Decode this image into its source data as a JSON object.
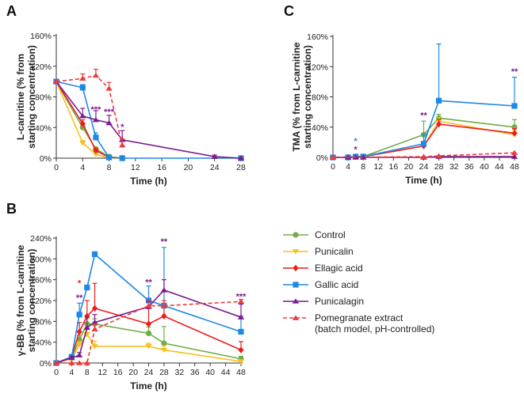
{
  "colors": {
    "Control": "#70ad47",
    "Punicalin": "#f5c020",
    "Ellagic acid": "#ee1c1c",
    "Gallic acid": "#1e88e5",
    "Punicalagin": "#7b1a8e",
    "Pomegranate extract": "#ee3a3a",
    "axis": "#333333"
  },
  "legend": {
    "items": [
      {
        "name": "Control",
        "label": "Control",
        "marker": "circle",
        "dashed": false
      },
      {
        "name": "Punicalin",
        "label": "Punicalin",
        "marker": "tri-down",
        "dashed": false
      },
      {
        "name": "Ellagic acid",
        "label": "Ellagic acid",
        "marker": "diamond",
        "dashed": false
      },
      {
        "name": "Gallic acid",
        "label": "Gallic acid",
        "marker": "square",
        "dashed": false
      },
      {
        "name": "Punicalagin",
        "label": "Punicalagin",
        "marker": "tri-up",
        "dashed": false
      },
      {
        "name": "Pomegranate extract",
        "label": "Pomegranate extract\n(batch model, pH-controlled)",
        "marker": "tri-up",
        "dashed": true
      }
    ]
  },
  "chart_data": [
    {
      "panel": "A",
      "type": "line",
      "xlabel": "Time (h)",
      "ylabel": [
        "L-carnitine (% from",
        "starting concentration)"
      ],
      "xlim": [
        0,
        28
      ],
      "xticks": [
        0,
        4,
        8,
        12,
        16,
        20,
        24,
        28
      ],
      "ylim": [
        0,
        160
      ],
      "yticks": [
        0,
        40,
        80,
        120,
        160
      ],
      "ytick_suffix": "%",
      "series": [
        {
          "name": "Control",
          "x": [
            0,
            4,
            6,
            8,
            10
          ],
          "y": [
            100,
            40,
            12,
            2,
            0
          ],
          "err": [
            0,
            4,
            2,
            1,
            0
          ]
        },
        {
          "name": "Punicalin",
          "x": [
            0,
            4,
            6,
            8,
            10
          ],
          "y": [
            100,
            20,
            5,
            0,
            0
          ],
          "err": [
            0,
            3,
            1,
            0,
            0
          ]
        },
        {
          "name": "Ellagic acid",
          "x": [
            0,
            4,
            6,
            8,
            10
          ],
          "y": [
            100,
            45,
            10,
            1,
            0
          ],
          "err": [
            0,
            5,
            2,
            0,
            0
          ]
        },
        {
          "name": "Gallic acid",
          "x": [
            0,
            4,
            6,
            8,
            10,
            28
          ],
          "y": [
            100,
            92,
            27,
            1,
            0,
            0
          ],
          "err": [
            0,
            4,
            6,
            0,
            0,
            0
          ]
        },
        {
          "name": "Punicalagin",
          "x": [
            0,
            4,
            6,
            8,
            10,
            24,
            28
          ],
          "y": [
            100,
            55,
            50,
            46,
            24,
            2,
            0
          ],
          "err": [
            0,
            10,
            12,
            10,
            12,
            2,
            0
          ]
        },
        {
          "name": "Pomegranate extract",
          "x": [
            0,
            4,
            6,
            8,
            10
          ],
          "y": [
            100,
            104,
            108,
            91,
            17
          ],
          "err": [
            0,
            6,
            8,
            8,
            8
          ]
        }
      ],
      "annotations": [
        {
          "text": "***",
          "x": 6,
          "y": 60,
          "color_of": "Punicalagin"
        },
        {
          "text": "***",
          "x": 8,
          "y": 57,
          "color_of": "Punicalagin"
        },
        {
          "text": "*",
          "x": 10,
          "y": 37,
          "color_of": "Punicalagin"
        }
      ]
    },
    {
      "panel": "B",
      "type": "line",
      "xlabel": "Time (h)",
      "ylabel": [
        "γ-BB (% from L-carnitine",
        "starting concentration)"
      ],
      "xlim": [
        0,
        48
      ],
      "xticks": [
        0,
        4,
        8,
        12,
        16,
        20,
        24,
        28,
        32,
        36,
        40,
        44,
        48
      ],
      "ylim": [
        0,
        240
      ],
      "yticks": [
        0,
        40,
        80,
        120,
        160,
        200,
        240
      ],
      "ytick_suffix": "%",
      "series": [
        {
          "name": "Control",
          "x": [
            0,
            4,
            6,
            8,
            10,
            24,
            28,
            48
          ],
          "y": [
            0,
            10,
            45,
            75,
            75,
            57,
            38,
            8
          ],
          "err": [
            0,
            4,
            8,
            10,
            10,
            12,
            32,
            5
          ]
        },
        {
          "name": "Punicalin",
          "x": [
            0,
            4,
            6,
            8,
            10,
            24,
            28,
            48
          ],
          "y": [
            0,
            8,
            35,
            55,
            32,
            32,
            25,
            3
          ],
          "err": [
            0,
            3,
            6,
            30,
            10,
            6,
            8,
            2
          ]
        },
        {
          "name": "Ellagic acid",
          "x": [
            0,
            4,
            6,
            8,
            10,
            24,
            28,
            48
          ],
          "y": [
            0,
            12,
            60,
            90,
            105,
            75,
            90,
            25
          ],
          "err": [
            0,
            4,
            18,
            30,
            48,
            30,
            25,
            16
          ]
        },
        {
          "name": "Gallic acid",
          "x": [
            0,
            4,
            6,
            8,
            10,
            24,
            28,
            48
          ],
          "y": [
            0,
            12,
            93,
            145,
            209,
            120,
            110,
            60
          ],
          "err": [
            0,
            4,
            22,
            0,
            0,
            28,
            112,
            30
          ]
        },
        {
          "name": "Punicalagin",
          "x": [
            0,
            4,
            6,
            8,
            10,
            24,
            28,
            48
          ],
          "y": [
            0,
            10,
            15,
            68,
            78,
            108,
            140,
            88
          ],
          "err": [
            0,
            3,
            5,
            20,
            15,
            10,
            20,
            25
          ]
        },
        {
          "name": "Pomegranate extract",
          "x": [
            0,
            4,
            6,
            8,
            10,
            24,
            28,
            48
          ],
          "y": [
            0,
            0,
            0,
            0,
            65,
            110,
            110,
            118
          ],
          "err": [
            0,
            0,
            0,
            0,
            10,
            10,
            10,
            4
          ]
        }
      ],
      "annotations": [
        {
          "text": "*",
          "x": 6,
          "y": 148,
          "color_of": "Ellagic acid"
        },
        {
          "text": "**",
          "x": 6,
          "y": 120,
          "color_of": "Punicalagin"
        },
        {
          "text": "**",
          "x": 24,
          "y": 150,
          "color_of": "Punicalagin"
        },
        {
          "text": "**",
          "x": 28,
          "y": 228,
          "color_of": "Punicalagin"
        },
        {
          "text": "***",
          "x": 48,
          "y": 122,
          "color_of": "Punicalagin"
        }
      ]
    },
    {
      "panel": "C",
      "type": "line",
      "xlabel": "Time (h)",
      "ylabel": [
        "TMA (% from L-carnitine",
        "starting concentration)"
      ],
      "xlim": [
        0,
        48
      ],
      "xticks": [
        0,
        4,
        8,
        12,
        16,
        20,
        24,
        28,
        32,
        36,
        40,
        44,
        48
      ],
      "ylim": [
        0,
        160
      ],
      "yticks": [
        0,
        40,
        80,
        120,
        160
      ],
      "ytick_suffix": "%",
      "series": [
        {
          "name": "Control",
          "x": [
            0,
            4,
            6,
            8,
            24,
            28,
            48
          ],
          "y": [
            0,
            0,
            1,
            1,
            30,
            52,
            40
          ],
          "err": [
            0,
            0,
            0,
            0,
            18,
            5,
            10
          ]
        },
        {
          "name": "Punicalin",
          "x": [
            0,
            4,
            6,
            8,
            24,
            28,
            48
          ],
          "y": [
            0,
            0,
            1,
            1,
            15,
            48,
            30
          ],
          "err": [
            0,
            0,
            0,
            0,
            5,
            5,
            6
          ]
        },
        {
          "name": "Ellagic acid",
          "x": [
            0,
            4,
            6,
            8,
            24,
            28,
            48
          ],
          "y": [
            0,
            0,
            1,
            1,
            15,
            44,
            32
          ],
          "err": [
            0,
            0,
            0,
            0,
            5,
            6,
            6
          ]
        },
        {
          "name": "Gallic acid",
          "x": [
            0,
            4,
            6,
            8,
            24,
            28,
            48
          ],
          "y": [
            0,
            0,
            1,
            1,
            18,
            75,
            68
          ],
          "err": [
            0,
            0,
            0,
            0,
            12,
            75,
            38
          ]
        },
        {
          "name": "Punicalagin",
          "x": [
            0,
            4,
            6,
            8,
            24,
            28,
            48
          ],
          "y": [
            0,
            0,
            0,
            0,
            0,
            1,
            1
          ],
          "err": [
            0,
            0,
            0,
            0,
            0,
            0,
            0
          ]
        },
        {
          "name": "Pomegranate extract",
          "x": [
            0,
            24,
            28,
            48
          ],
          "y": [
            0,
            1,
            2,
            6
          ],
          "err": [
            0,
            0,
            0,
            0
          ]
        }
      ],
      "annotations": [
        {
          "text": "*",
          "x": 6,
          "y": 18,
          "color_of": "Gallic acid"
        },
        {
          "text": "*",
          "x": 6,
          "y": 7,
          "color_of": "Punicalagin"
        },
        {
          "text": "**",
          "x": 24,
          "y": 52,
          "color_of": "Punicalagin"
        },
        {
          "text": "**",
          "x": 48,
          "y": 110,
          "color_of": "Punicalagin"
        }
      ]
    }
  ]
}
